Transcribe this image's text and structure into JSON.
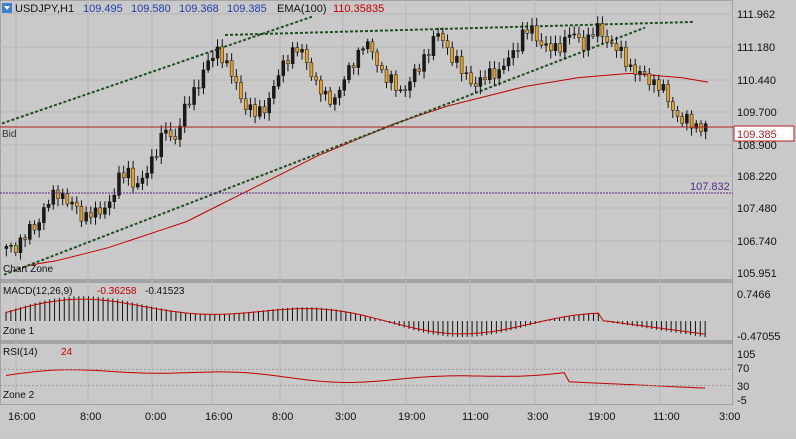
{
  "header": {
    "symbol_tf": "USDJPY,H1",
    "open": "109.495",
    "high": "109.580",
    "low": "109.368",
    "close": "109.385",
    "ema_label": "EMA(100)",
    "ema_value": "110.35835"
  },
  "main_axis": {
    "prices": [
      "111.962",
      "111.180",
      "110.440",
      "109.700",
      "108.900",
      "108.220",
      "107.480",
      "106.740",
      "105.951"
    ],
    "bid_label": "Bid",
    "bid_value": "109.385",
    "level_value": "107.832",
    "zone_label": "Chart Zone"
  },
  "macd": {
    "label": "MACD(12,26,9)",
    "v1": "-0.36258",
    "v2": "-0.41523",
    "axis_top": "0.7466",
    "axis_bottom": "-0.47055",
    "zone_label": "Zone 1"
  },
  "rsi": {
    "label": "RSI(14)",
    "value": "24",
    "levels": [
      "105",
      "70",
      "30",
      "-5"
    ],
    "zone_label": "Zone 2"
  },
  "time_axis": [
    "16:00",
    "8:00",
    "0:00",
    "16:00",
    "8:00",
    "3:00",
    "19:00",
    "11:00",
    "3:00",
    "19:00",
    "11:00",
    "3:00"
  ],
  "colors": {
    "bull": "#1a1a1a",
    "bear": "#e8a020",
    "ema": "#c00000",
    "trend": "#1f4f1f",
    "level": "#5a2a80",
    "bid": "#b02020"
  },
  "chart_data": {
    "type": "candlestick",
    "symbol": "USDJPY",
    "timeframe": "H1",
    "y_range": [
      105.951,
      111.962
    ],
    "close_series": [
      106.55,
      106.6,
      106.8,
      106.95,
      107.1,
      107.55,
      107.7,
      107.9,
      107.7,
      107.5,
      107.3,
      107.45,
      107.3,
      107.55,
      107.8,
      108.2,
      108.4,
      108.0,
      108.1,
      108.6,
      108.95,
      109.3,
      109.0,
      109.6,
      109.9,
      110.3,
      110.7,
      110.9,
      111.2,
      110.8,
      110.4,
      110.0,
      109.8,
      109.6,
      109.85,
      110.2,
      110.6,
      111.0,
      111.2,
      111.0,
      110.7,
      110.3,
      110.0,
      110.0,
      110.3,
      110.6,
      111.0,
      111.3,
      111.1,
      110.8,
      110.5,
      110.3,
      110.2,
      110.4,
      110.6,
      111.0,
      111.3,
      111.5,
      111.2,
      110.9,
      110.6,
      110.5,
      110.3,
      110.5,
      110.7,
      110.6,
      110.9,
      111.2,
      111.5,
      111.6,
      111.4,
      111.2,
      111.1,
      111.3,
      111.5,
      111.4,
      111.3,
      111.5,
      111.6,
      111.4,
      111.2,
      111.0,
      110.8,
      110.6,
      110.5,
      110.45,
      110.3,
      110.0,
      109.7,
      109.5,
      109.45,
      109.4,
      109.385
    ],
    "ema_series": [
      106.2,
      106.3,
      106.45,
      106.6,
      106.8,
      107.0,
      107.2,
      107.5,
      107.8,
      108.1,
      108.4,
      108.7,
      108.95,
      109.2,
      109.45,
      109.65,
      109.85,
      110.0,
      110.15,
      110.3,
      110.4,
      110.5,
      110.55,
      110.6,
      110.55,
      110.5,
      110.4
    ],
    "bid": 109.385,
    "level": 107.832,
    "ema_value": 110.35835,
    "macd": {
      "main": -0.36258,
      "signal": -0.41523,
      "range": [
        -0.47055,
        0.7466
      ]
    },
    "rsi": {
      "value": 24,
      "levels": [
        70,
        30
      ],
      "range": [
        -5,
        105
      ]
    }
  }
}
